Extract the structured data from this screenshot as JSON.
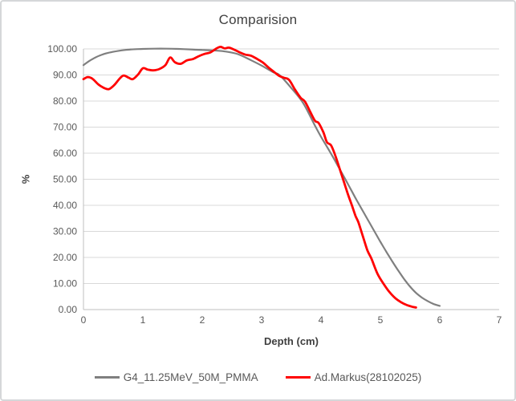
{
  "chart_data": {
    "type": "line",
    "title": "Comparision",
    "xlabel": "Depth (cm)",
    "ylabel": "%",
    "xlim": [
      0,
      7
    ],
    "ylim": [
      0,
      100
    ],
    "xticks": [
      0,
      1,
      2,
      3,
      4,
      5,
      6,
      7
    ],
    "yticks": [
      0,
      10,
      20,
      30,
      40,
      50,
      60,
      70,
      80,
      90,
      100
    ],
    "ytick_decimals": 2,
    "grid": "horizontal",
    "legend_position": "bottom",
    "colors": {
      "gridline": "#d9d9d9",
      "axis_line": "#bfbfbf",
      "tick_text": "#595959",
      "title_text": "#404040",
      "panel_border": "#d5d7d9"
    },
    "series": [
      {
        "name": "G4_11.25MeV_50M_PMMA",
        "color": "#7f7f7f",
        "width": 2.2,
        "points": [
          [
            0.0,
            93.8
          ],
          [
            0.1,
            95.4
          ],
          [
            0.2,
            96.7
          ],
          [
            0.3,
            97.7
          ],
          [
            0.4,
            98.4
          ],
          [
            0.5,
            98.9
          ],
          [
            0.6,
            99.3
          ],
          [
            0.7,
            99.6
          ],
          [
            0.8,
            99.8
          ],
          [
            1.0,
            100.0
          ],
          [
            1.2,
            100.1
          ],
          [
            1.4,
            100.1
          ],
          [
            1.6,
            100.0
          ],
          [
            1.8,
            99.8
          ],
          [
            2.0,
            99.6
          ],
          [
            2.2,
            99.4
          ],
          [
            2.4,
            99.0
          ],
          [
            2.6,
            98.0
          ],
          [
            2.8,
            95.9
          ],
          [
            3.0,
            93.6
          ],
          [
            3.2,
            91.0
          ],
          [
            3.3,
            90.0
          ],
          [
            3.5,
            85.0
          ],
          [
            3.7,
            79.2
          ],
          [
            3.9,
            70.5
          ],
          [
            4.0,
            66.3
          ],
          [
            4.1,
            62.5
          ],
          [
            4.2,
            58.6
          ],
          [
            4.3,
            54.5
          ],
          [
            4.4,
            50.4
          ],
          [
            4.5,
            46.2
          ],
          [
            4.6,
            42.0
          ],
          [
            4.7,
            38.0
          ],
          [
            4.8,
            34.0
          ],
          [
            4.9,
            30.0
          ],
          [
            5.0,
            26.0
          ],
          [
            5.1,
            22.2
          ],
          [
            5.2,
            18.5
          ],
          [
            5.3,
            15.0
          ],
          [
            5.4,
            11.7
          ],
          [
            5.5,
            8.8
          ],
          [
            5.6,
            6.4
          ],
          [
            5.7,
            4.6
          ],
          [
            5.8,
            3.2
          ],
          [
            5.9,
            2.1
          ],
          [
            6.0,
            1.4
          ]
        ]
      },
      {
        "name": "Ad.Markus(28102025)",
        "color": "#ff0000",
        "width": 2.8,
        "points": [
          [
            0.0,
            88.4
          ],
          [
            0.07,
            89.2
          ],
          [
            0.15,
            88.6
          ],
          [
            0.25,
            86.4
          ],
          [
            0.35,
            85.0
          ],
          [
            0.43,
            84.6
          ],
          [
            0.52,
            86.2
          ],
          [
            0.62,
            88.9
          ],
          [
            0.68,
            89.8
          ],
          [
            0.76,
            89.0
          ],
          [
            0.83,
            88.4
          ],
          [
            0.92,
            90.2
          ],
          [
            1.0,
            92.6
          ],
          [
            1.08,
            92.1
          ],
          [
            1.18,
            91.8
          ],
          [
            1.28,
            92.3
          ],
          [
            1.38,
            93.8
          ],
          [
            1.46,
            96.7
          ],
          [
            1.54,
            94.9
          ],
          [
            1.64,
            94.3
          ],
          [
            1.74,
            95.6
          ],
          [
            1.84,
            96.1
          ],
          [
            1.94,
            97.2
          ],
          [
            2.04,
            98.1
          ],
          [
            2.14,
            98.7
          ],
          [
            2.24,
            100.2
          ],
          [
            2.31,
            100.8
          ],
          [
            2.38,
            100.2
          ],
          [
            2.45,
            100.5
          ],
          [
            2.55,
            99.6
          ],
          [
            2.65,
            98.5
          ],
          [
            2.73,
            97.8
          ],
          [
            2.82,
            97.4
          ],
          [
            2.92,
            96.2
          ],
          [
            3.02,
            94.8
          ],
          [
            3.12,
            92.8
          ],
          [
            3.22,
            91.0
          ],
          [
            3.3,
            89.6
          ],
          [
            3.38,
            88.9
          ],
          [
            3.46,
            88.2
          ],
          [
            3.56,
            84.5
          ],
          [
            3.66,
            81.2
          ],
          [
            3.73,
            79.8
          ],
          [
            3.82,
            75.8
          ],
          [
            3.9,
            72.4
          ],
          [
            3.96,
            71.6
          ],
          [
            4.04,
            68.0
          ],
          [
            4.1,
            64.2
          ],
          [
            4.17,
            63.0
          ],
          [
            4.25,
            58.5
          ],
          [
            4.35,
            51.5
          ],
          [
            4.45,
            44.5
          ],
          [
            4.52,
            40.0
          ],
          [
            4.58,
            36.0
          ],
          [
            4.63,
            33.5
          ],
          [
            4.7,
            28.5
          ],
          [
            4.78,
            22.8
          ],
          [
            4.85,
            19.5
          ],
          [
            4.95,
            13.8
          ],
          [
            5.05,
            10.0
          ],
          [
            5.15,
            6.8
          ],
          [
            5.25,
            4.4
          ],
          [
            5.35,
            2.8
          ],
          [
            5.45,
            1.7
          ],
          [
            5.55,
            1.0
          ],
          [
            5.6,
            0.8
          ]
        ]
      }
    ]
  }
}
